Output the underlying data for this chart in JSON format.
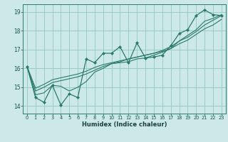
{
  "xlabel": "Humidex (Indice chaleur)",
  "background_color": "#cce8e8",
  "grid_color": "#99cccc",
  "line_color": "#2a7a6a",
  "xlim": [
    -0.5,
    23.5
  ],
  "ylim": [
    13.6,
    19.4
  ],
  "xticks": [
    0,
    1,
    2,
    3,
    4,
    5,
    6,
    7,
    8,
    9,
    10,
    11,
    12,
    13,
    14,
    15,
    16,
    17,
    18,
    19,
    20,
    21,
    22,
    23
  ],
  "yticks": [
    14,
    15,
    16,
    17,
    18,
    19
  ],
  "series": [
    [
      16.1,
      14.45,
      14.2,
      15.1,
      14.05,
      14.65,
      14.45,
      16.5,
      16.3,
      16.8,
      16.8,
      17.15,
      16.3,
      17.35,
      16.55,
      16.6,
      16.7,
      17.2,
      17.85,
      18.05,
      18.8,
      19.1,
      18.85,
      18.8
    ],
    [
      16.1,
      14.6,
      14.7,
      15.1,
      15.05,
      14.8,
      15.0,
      15.3,
      15.8,
      16.0,
      16.25,
      16.3,
      16.35,
      16.5,
      16.55,
      16.7,
      16.85,
      17.05,
      17.45,
      17.75,
      18.05,
      18.5,
      18.65,
      18.85
    ],
    [
      16.1,
      14.8,
      15.0,
      15.25,
      15.35,
      15.45,
      15.55,
      15.7,
      15.9,
      16.1,
      16.25,
      16.35,
      16.5,
      16.6,
      16.7,
      16.8,
      16.95,
      17.15,
      17.45,
      17.65,
      17.95,
      18.3,
      18.55,
      18.8
    ],
    [
      16.1,
      14.95,
      15.15,
      15.4,
      15.5,
      15.6,
      15.7,
      15.85,
      16.05,
      16.2,
      16.3,
      16.4,
      16.5,
      16.6,
      16.7,
      16.8,
      16.9,
      17.05,
      17.3,
      17.5,
      17.8,
      18.1,
      18.3,
      18.6
    ]
  ],
  "marker_series": 0
}
